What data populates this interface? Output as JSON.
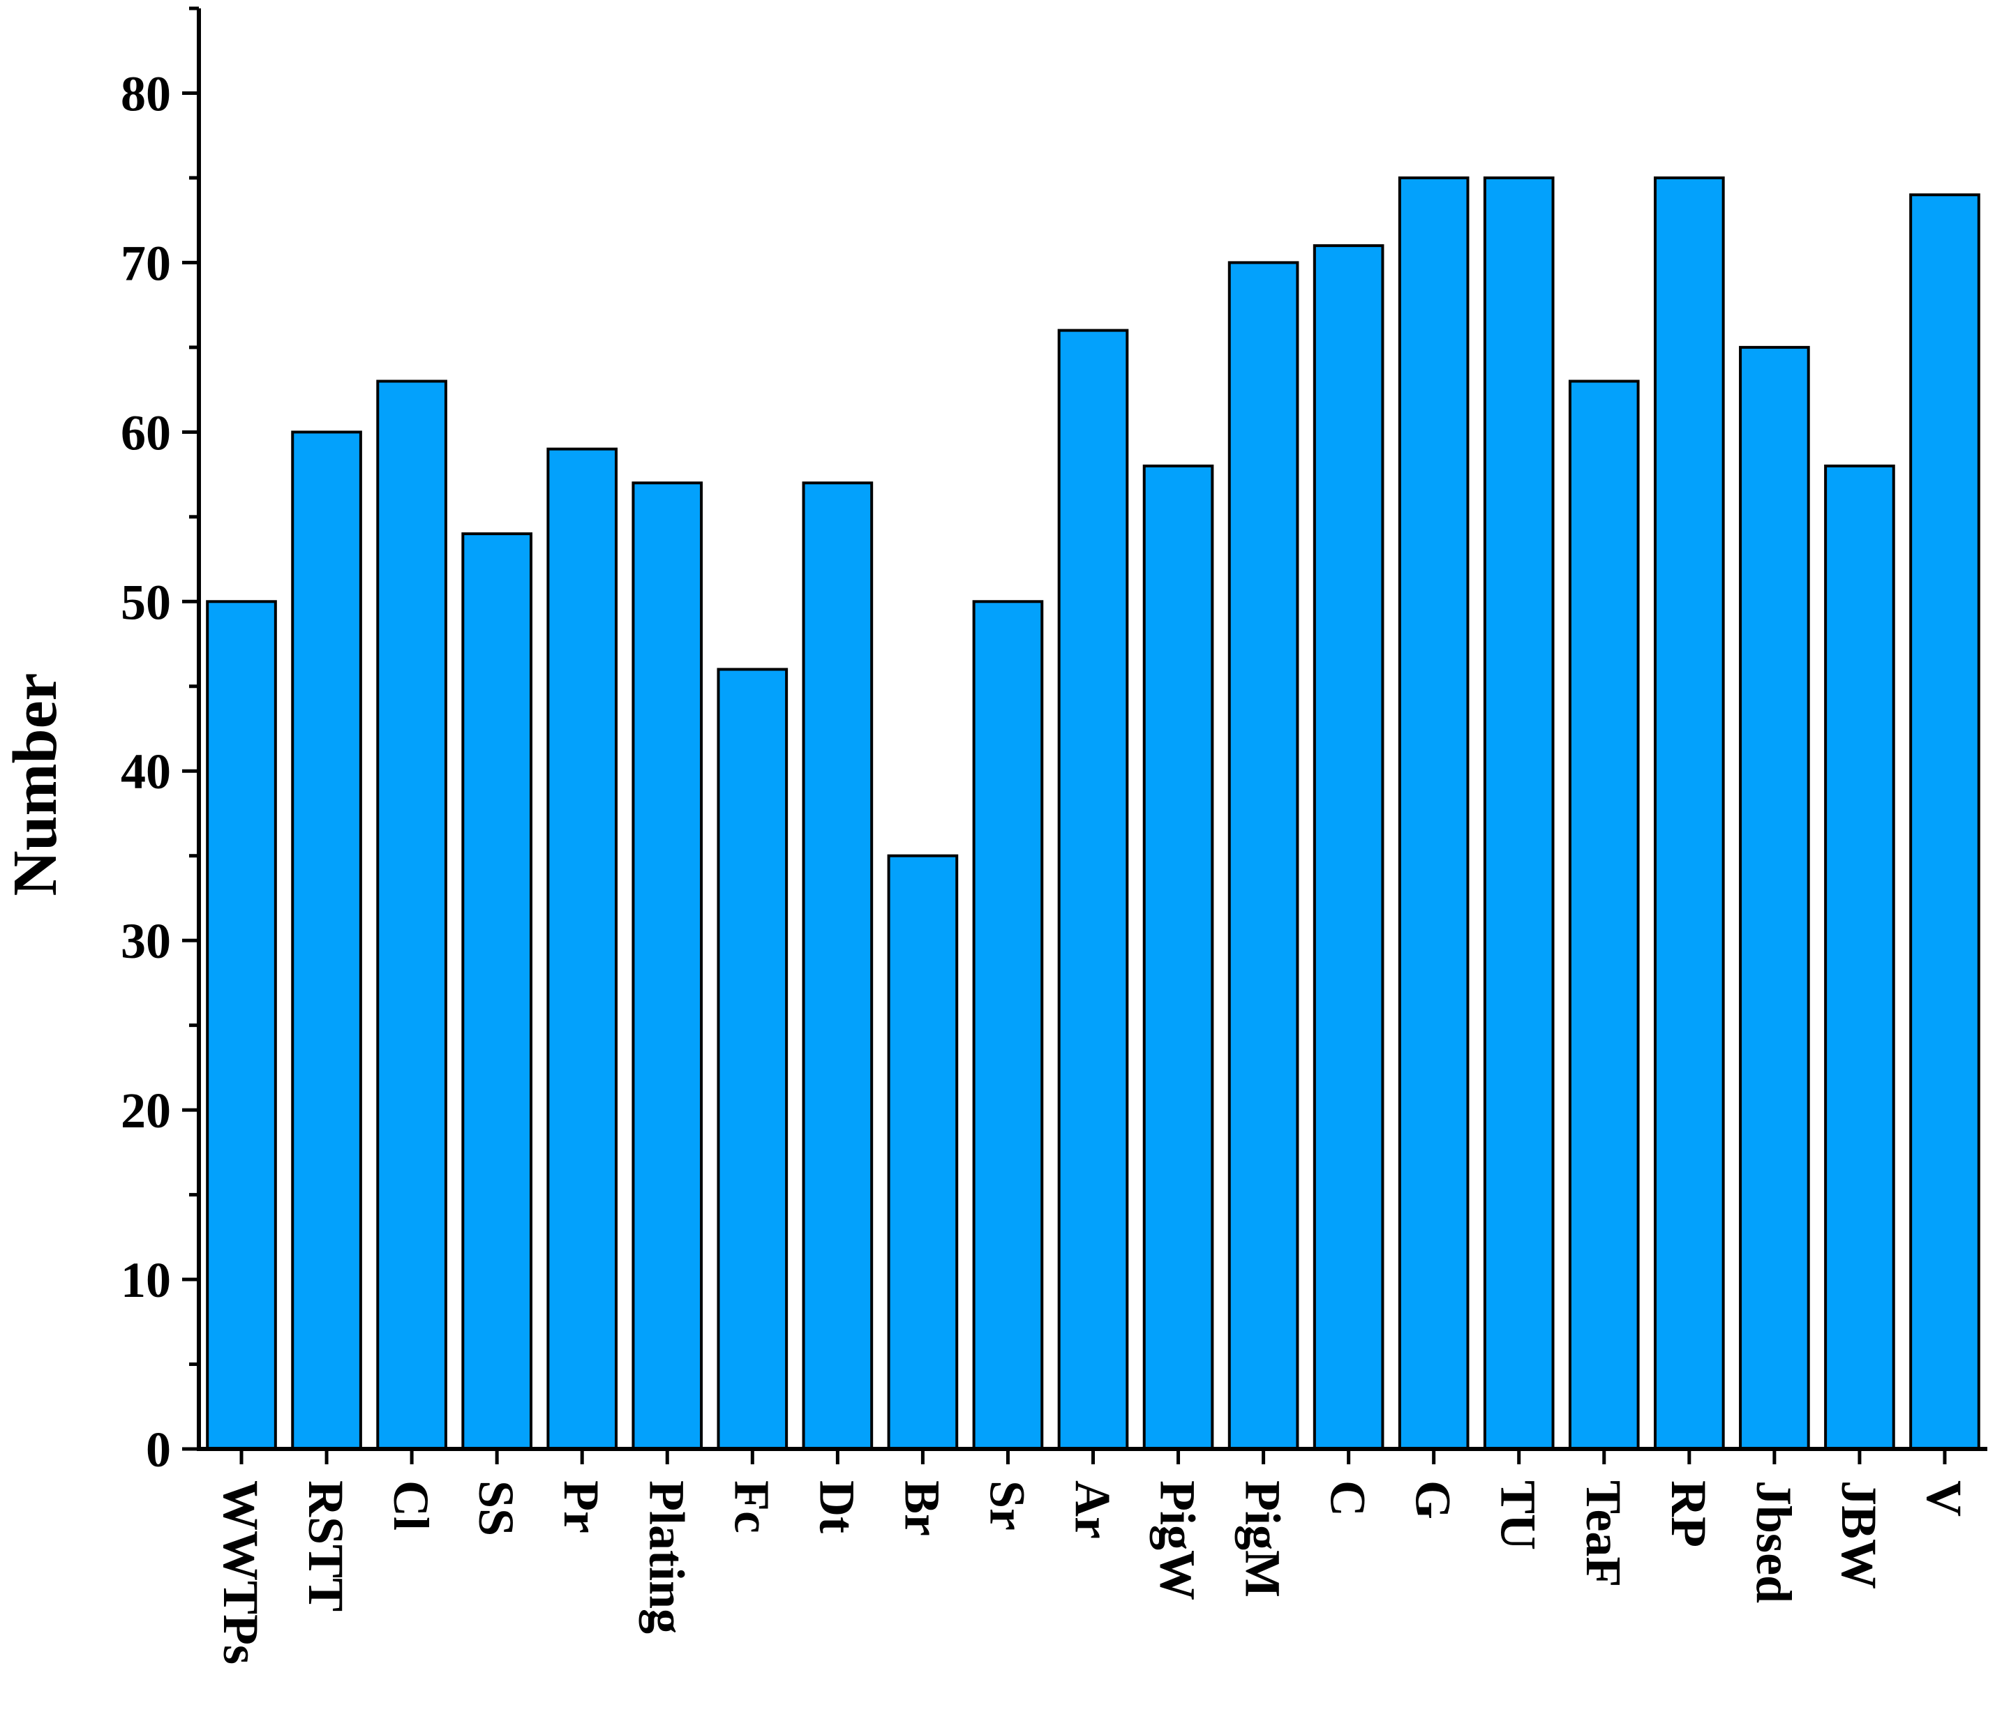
{
  "chart_data": {
    "type": "bar",
    "title": "",
    "xlabel": "",
    "ylabel": "Number",
    "ylim": [
      0,
      85
    ],
    "yticks": [
      0,
      10,
      20,
      30,
      40,
      50,
      60,
      70,
      80
    ],
    "grid": false,
    "bar_color": "#03a1fc",
    "categories": [
      "WWTPs",
      "RSTT",
      "Cl",
      "SS",
      "Pr",
      "Plating",
      "Fc",
      "Dt",
      "Br",
      "Sr",
      "Ar",
      "PigW",
      "PigM",
      "C",
      "G",
      "TU",
      "TeaF",
      "RP",
      "Jbsed",
      "JBW",
      "V"
    ],
    "values": [
      50,
      60,
      63,
      54,
      59,
      57,
      46,
      57,
      35,
      50,
      66,
      58,
      70,
      71,
      75,
      75,
      63,
      75,
      65,
      58,
      74
    ]
  }
}
